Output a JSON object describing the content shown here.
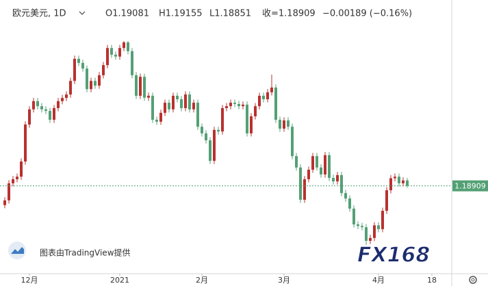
{
  "header": {
    "symbol": "欧元美元, 1D",
    "open": "O1.19081",
    "high": "H1.19155",
    "low": "L1.18851",
    "close": "收=1.18909",
    "change": "−0.00189 (−0.16%)"
  },
  "watermark": {
    "provider": "图表由TradingView提供",
    "brand": "FX168"
  },
  "chart_data": {
    "type": "candlestick",
    "up_color": "#b8312f",
    "down_color": "#53a075",
    "last_price_color": "#53a075",
    "ylim": [
      1.1613,
      1.2479
    ],
    "last_price": 1.18909,
    "categories": [
      null,
      null,
      null,
      null,
      null,
      null,
      "12月",
      null,
      null,
      null,
      null,
      null,
      null,
      null,
      null,
      null,
      null,
      null,
      null,
      null,
      null,
      null,
      null,
      null,
      null,
      null,
      null,
      null,
      "2021",
      null,
      null,
      null,
      null,
      null,
      null,
      null,
      null,
      null,
      null,
      null,
      null,
      null,
      null,
      null,
      null,
      null,
      null,
      null,
      "2月",
      null,
      null,
      null,
      null,
      null,
      null,
      null,
      null,
      null,
      null,
      null,
      null,
      null,
      null,
      null,
      null,
      null,
      null,
      null,
      "3月",
      null,
      null,
      null,
      null,
      null,
      null,
      null,
      null,
      null,
      null,
      null,
      null,
      null,
      null,
      null,
      null,
      null,
      null,
      null,
      null,
      null,
      null,
      "4月",
      null,
      null,
      null,
      null,
      null,
      null,
      null,
      null,
      null,
      null,
      null,
      null,
      "18"
    ],
    "open": [
      1.183,
      1.1845,
      1.1899,
      1.1912,
      1.192,
      1.1968,
      1.2085,
      1.2133,
      1.2159,
      1.2143,
      1.2133,
      1.2128,
      1.21,
      1.2137,
      1.2159,
      1.2169,
      1.218,
      1.2223,
      1.2293,
      1.228,
      1.2262,
      1.2197,
      1.2223,
      1.2208,
      1.2241,
      1.2273,
      1.2327,
      1.2306,
      1.23,
      1.2327,
      1.2345,
      1.2317,
      1.2241,
      1.2176,
      1.2236,
      1.217,
      1.2176,
      1.21,
      1.2094,
      1.2122,
      1.2154,
      1.2133,
      1.2176,
      1.2165,
      1.2137,
      1.218,
      1.2133,
      1.2154,
      1.2078,
      1.2057,
      1.2035,
      1.197,
      1.2068,
      1.2063,
      1.2137,
      1.2143,
      1.2154,
      1.215,
      1.2143,
      1.2148,
      1.2057,
      1.2111,
      1.2143,
      1.2176,
      1.2165,
      1.2187,
      1.2202,
      1.21,
      1.2072,
      1.2098,
      1.2078,
      1.1985,
      1.1949,
      1.1847,
      1.1912,
      1.1942,
      1.1985,
      1.1949,
      1.1927,
      1.1988,
      1.1916,
      1.1905,
      1.1925,
      1.1868,
      1.1851,
      1.1819,
      1.1769,
      1.1764,
      1.176,
      1.1717,
      1.1726,
      1.1766,
      1.1754,
      1.1812,
      1.1877,
      1.1915,
      1.192,
      1.1899,
      1.19081,
      null,
      null,
      null,
      null,
      null,
      null
    ],
    "high": [
      1.1855,
      1.1909,
      1.1922,
      1.193,
      1.1978,
      1.2095,
      1.2143,
      1.2169,
      1.2169,
      1.2153,
      1.2143,
      1.2138,
      1.2147,
      1.2169,
      1.2179,
      1.219,
      1.2233,
      1.2303,
      1.2303,
      1.229,
      1.2272,
      1.2233,
      1.2233,
      1.2251,
      1.2283,
      1.2337,
      1.2337,
      1.2316,
      1.2337,
      1.2349,
      1.2349,
      1.2327,
      1.2251,
      1.2246,
      1.2246,
      1.2186,
      1.2186,
      1.211,
      1.2132,
      1.2164,
      1.2164,
      1.2186,
      1.2186,
      1.2175,
      1.219,
      1.219,
      1.2164,
      1.2164,
      1.2088,
      1.2067,
      1.2045,
      1.2078,
      1.2078,
      1.2147,
      1.2153,
      1.2164,
      1.2164,
      1.216,
      1.2158,
      1.2158,
      1.2121,
      1.2153,
      1.2186,
      1.2186,
      1.2197,
      1.2243,
      1.2212,
      1.211,
      1.2108,
      1.2108,
      1.2088,
      1.1995,
      1.1959,
      1.1922,
      1.1952,
      1.1995,
      1.1995,
      1.1959,
      1.1998,
      1.1998,
      1.1926,
      1.1935,
      1.1935,
      1.1878,
      1.1861,
      1.1829,
      1.1779,
      1.1774,
      1.177,
      1.1736,
      1.1776,
      1.1776,
      1.1822,
      1.1887,
      1.1925,
      1.193,
      1.193,
      1.1918,
      1.19155,
      null,
      null,
      null,
      null,
      null,
      null
    ],
    "low": [
      1.182,
      1.1835,
      1.1889,
      1.1902,
      1.191,
      1.1958,
      1.2075,
      1.2123,
      1.2133,
      1.2123,
      1.2118,
      1.209,
      1.209,
      1.2127,
      1.2149,
      1.2159,
      1.217,
      1.2213,
      1.227,
      1.2252,
      1.2187,
      1.2187,
      1.2198,
      1.2198,
      1.2231,
      1.2263,
      1.2296,
      1.229,
      1.229,
      1.2317,
      1.2307,
      1.2231,
      1.2166,
      1.2166,
      1.216,
      1.216,
      1.209,
      1.2084,
      1.2084,
      1.2112,
      1.2123,
      1.2123,
      1.2155,
      1.2127,
      1.2127,
      1.2123,
      1.2123,
      1.2068,
      1.2047,
      1.2025,
      1.196,
      1.196,
      1.2053,
      1.2053,
      1.2127,
      1.2133,
      1.214,
      1.2133,
      1.2133,
      1.2047,
      1.2047,
      1.2101,
      1.2133,
      1.2155,
      1.2155,
      1.2177,
      1.209,
      1.2062,
      1.2062,
      1.2068,
      1.1975,
      1.1939,
      1.1837,
      1.1837,
      1.1902,
      1.1932,
      1.1939,
      1.1917,
      1.1917,
      1.1906,
      1.1895,
      1.1895,
      1.1858,
      1.1841,
      1.1809,
      1.1759,
      1.1754,
      1.175,
      1.1704,
      1.1707,
      1.1716,
      1.1744,
      1.1744,
      1.1802,
      1.1867,
      1.1905,
      1.1889,
      1.1889,
      1.18851,
      null,
      null,
      null,
      null,
      null,
      null
    ],
    "close": [
      1.1845,
      1.1899,
      1.1912,
      1.192,
      1.1968,
      1.2085,
      1.2133,
      1.2159,
      1.2143,
      1.2133,
      1.2128,
      1.21,
      1.2137,
      1.2159,
      1.2169,
      1.218,
      1.2223,
      1.2293,
      1.228,
      1.2262,
      1.2197,
      1.2223,
      1.2208,
      1.2241,
      1.2273,
      1.2327,
      1.2306,
      1.23,
      1.2327,
      1.2345,
      1.2317,
      1.2241,
      1.2176,
      1.2236,
      1.217,
      1.2176,
      1.21,
      1.2094,
      1.2122,
      1.2154,
      1.2133,
      1.2176,
      1.2165,
      1.2137,
      1.218,
      1.2133,
      1.2154,
      1.2078,
      1.2057,
      1.2035,
      1.197,
      1.2068,
      1.2063,
      1.2137,
      1.2143,
      1.2154,
      1.215,
      1.2143,
      1.2148,
      1.2057,
      1.2111,
      1.2143,
      1.2176,
      1.2165,
      1.2187,
      1.2202,
      1.21,
      1.2072,
      1.2098,
      1.2078,
      1.1985,
      1.1949,
      1.1847,
      1.1912,
      1.1942,
      1.1985,
      1.1949,
      1.1927,
      1.1988,
      1.1916,
      1.1905,
      1.1925,
      1.1868,
      1.1851,
      1.1819,
      1.1769,
      1.1764,
      1.176,
      1.1717,
      1.1726,
      1.1766,
      1.1754,
      1.1812,
      1.1877,
      1.1915,
      1.192,
      1.1899,
      1.1908,
      1.18909,
      null,
      null,
      null,
      null,
      null,
      null
    ]
  }
}
